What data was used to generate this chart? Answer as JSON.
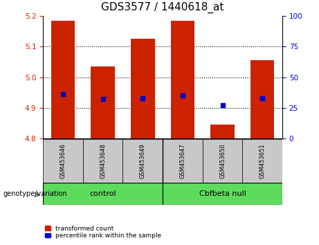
{
  "title": "GDS3577 / 1440618_at",
  "samples": [
    "GSM453646",
    "GSM453648",
    "GSM453649",
    "GSM453647",
    "GSM453650",
    "GSM453651"
  ],
  "bar_values": [
    5.185,
    5.035,
    5.125,
    5.185,
    4.845,
    5.055
  ],
  "bar_bottom": 4.8,
  "percentile_values": [
    36,
    32,
    33,
    35,
    27,
    33
  ],
  "ylim_left": [
    4.8,
    5.2
  ],
  "ylim_right": [
    0,
    100
  ],
  "yticks_left": [
    4.8,
    4.9,
    5.0,
    5.1,
    5.2
  ],
  "yticks_right": [
    0,
    25,
    50,
    75,
    100
  ],
  "bar_color": "#cc2200",
  "dot_color": "#0000cc",
  "title_fontsize": 11,
  "legend_label_bar": "transformed count",
  "legend_label_dot": "percentile rank within the sample",
  "xlabel_group": "genotype/variation",
  "group_label_1": "control",
  "group_label_2": "Cbfbeta null",
  "group_color": "#5ddb5d",
  "sample_box_color": "#c8c8c8"
}
